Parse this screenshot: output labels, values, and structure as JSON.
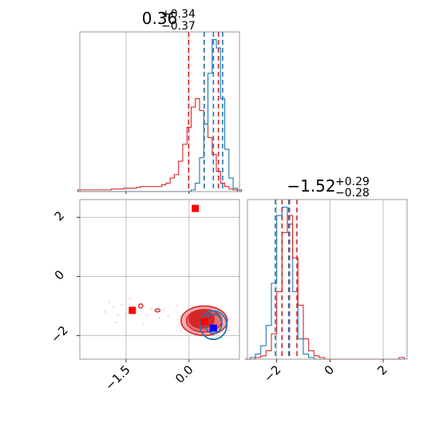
{
  "chart_data": {
    "type": "corner",
    "colors": {
      "red": "#d62728",
      "blue": "#1f77b4",
      "red_fill": "#f4a9aa",
      "marker_blue": "#0000ff",
      "marker_red": "#ff0000"
    },
    "panels": [
      {
        "id": "hist_param1",
        "type": "histogram",
        "title": {
          "median": "0.36",
          "plus": "+0.34",
          "minus": "−0.37"
        },
        "xlim": [
          -2.6,
          1.2
        ],
        "grid_x": [
          -1.5,
          0.0
        ],
        "series": [
          {
            "name": "",
            "color": "#d62728",
            "x": [
              -2.6,
              -2.5,
              -2.4,
              -2.3,
              -2.2,
              -2.1,
              -2.0,
              -1.9,
              -1.8,
              -1.7,
              -1.6,
              -1.5,
              -1.4,
              -1.3,
              -1.2,
              -1.1,
              -1.0,
              -0.9,
              -0.8,
              -0.7,
              -0.6,
              -0.5,
              -0.4,
              -0.3,
              -0.2,
              -0.1,
              0.0,
              0.1,
              0.2,
              0.3,
              0.4,
              0.5,
              0.6,
              0.7,
              0.8,
              0.9,
              1.0,
              1.1,
              1.2
            ],
            "values": [
              0.01,
              0.01,
              0.01,
              0.01,
              0.01,
              0.01,
              0.01,
              0.01,
              0.015,
              0.015,
              0.015,
              0.02,
              0.02,
              0.02,
              0.025,
              0.03,
              0.03,
              0.03,
              0.03,
              0.03,
              0.04,
              0.05,
              0.08,
              0.1,
              0.18,
              0.28,
              0.38,
              0.5,
              0.55,
              0.48,
              0.4,
              0.32,
              0.22,
              0.12,
              0.05,
              0.03,
              0.015,
              0.01,
              0.01
            ],
            "quantile_lines": [
              -0.01,
              0.36,
              0.7
            ],
            "median_line": 0.36
          },
          {
            "name": "",
            "color": "#1f77b4",
            "x": [
              -2.6,
              -2.5,
              -2.4,
              -2.3,
              -2.2,
              -2.1,
              -2.0,
              -1.9,
              -1.8,
              -1.7,
              -1.6,
              -1.5,
              -1.4,
              -1.3,
              -1.2,
              -1.1,
              -1.0,
              -0.9,
              -0.8,
              -0.7,
              -0.6,
              -0.5,
              -0.4,
              -0.3,
              -0.2,
              -0.1,
              0.0,
              0.1,
              0.2,
              0.3,
              0.4,
              0.5,
              0.6,
              0.7,
              0.8,
              0.9,
              1.0,
              1.1,
              1.2
            ],
            "values": [
              0,
              0,
              0,
              0,
              0,
              0,
              0,
              0,
              0,
              0,
              0,
              0,
              0,
              0,
              0,
              0,
              0,
              0,
              0,
              0,
              0,
              0,
              0,
              0,
              0,
              0,
              0,
              0.01,
              0.05,
              0.2,
              0.4,
              0.7,
              0.9,
              0.85,
              0.55,
              0.25,
              0.08,
              0.02,
              0.0
            ],
            "quantile_lines": [
              0.36,
              0.58,
              0.8
            ],
            "median_line": 0.58
          }
        ]
      },
      {
        "id": "hist_param2",
        "type": "histogram",
        "title": {
          "median": "−1.52",
          "plus": "+0.29",
          "minus": "−0.28"
        },
        "xlim": [
          -3.1,
          2.9
        ],
        "xticks": [
          -2,
          0,
          2
        ],
        "xtick_labels": [
          "−2",
          "0",
          "2"
        ],
        "series": [
          {
            "name": "",
            "color": "#1f77b4",
            "x": [
              -3.1,
              -2.9,
              -2.7,
              -2.5,
              -2.3,
              -2.1,
              -1.9,
              -1.7,
              -1.5,
              -1.3,
              -1.1,
              -0.9,
              -0.7,
              -0.5,
              -0.3,
              -0.1,
              0.1,
              0.3,
              0.5,
              0.7,
              0.9,
              1.1,
              1.3,
              1.5,
              1.7,
              1.9,
              2.1,
              2.3,
              2.5,
              2.7
            ],
            "values": [
              0,
              0.01,
              0.03,
              0.08,
              0.2,
              0.45,
              0.85,
              0.9,
              0.8,
              0.4,
              0.12,
              0.03,
              0.01,
              0,
              0,
              0,
              0,
              0,
              0,
              0,
              0,
              0,
              0,
              0,
              0,
              0,
              0,
              0,
              0,
              0
            ],
            "quantile_lines": [
              -2.05,
              -1.8,
              -1.55
            ],
            "median_line": -1.8
          },
          {
            "name": "",
            "color": "#d62728",
            "x": [
              -3.1,
              -2.9,
              -2.7,
              -2.5,
              -2.3,
              -2.1,
              -1.9,
              -1.7,
              -1.5,
              -1.3,
              -1.1,
              -0.9,
              -0.7,
              -0.5,
              -0.3,
              -0.1,
              0.1,
              0.3,
              0.5,
              0.7,
              0.9,
              1.1,
              1.3,
              1.5,
              1.7,
              1.9,
              2.1,
              2.3,
              2.5,
              2.7
            ],
            "values": [
              0,
              0,
              0.01,
              0.02,
              0.05,
              0.15,
              0.4,
              0.75,
              0.85,
              0.6,
              0.32,
              0.12,
              0.05,
              0.02,
              0.01,
              0,
              0,
              0,
              0,
              0,
              0,
              0,
              0,
              0,
              0,
              0,
              0,
              0,
              0,
              0.01
            ],
            "quantile_lines": [
              -1.8,
              -1.52,
              -1.24
            ],
            "median_line": -1.52
          }
        ]
      },
      {
        "id": "joint_param1_param2",
        "type": "contour",
        "xlim": [
          -2.6,
          1.2
        ],
        "ylim": [
          -2.8,
          2.6
        ],
        "xticks": [
          -1.5,
          0.0
        ],
        "xtick_labels": [
          "−1.5",
          "0.0"
        ],
        "yticks": [
          -2,
          0,
          2
        ],
        "ytick_labels": [
          "−2",
          "0",
          "2"
        ],
        "red_contours": [
          {
            "cx": 0.36,
            "cy": -1.5,
            "rx": 0.55,
            "ry": 0.5
          },
          {
            "cx": 0.36,
            "cy": -1.5,
            "rx": 0.42,
            "ry": 0.38
          },
          {
            "cx": 0.3,
            "cy": -1.45,
            "rx": 0.3,
            "ry": 0.3
          }
        ],
        "blue_contours": [
          {
            "cx": 0.58,
            "cy": -1.65,
            "rx": 0.32,
            "ry": 0.48
          },
          {
            "cx": 0.58,
            "cy": -1.6,
            "rx": 0.2,
            "ry": 0.33
          }
        ],
        "red_markers": [
          {
            "x": 0.15,
            "y": 2.3
          },
          {
            "x": -1.35,
            "y": -1.15
          },
          {
            "x": 0.36,
            "y": -1.52
          }
        ],
        "blue_markers": [
          {
            "x": 0.58,
            "y": -1.75
          }
        ],
        "scatter_red": [
          {
            "x": -1.9,
            "y": -0.85
          },
          {
            "x": -1.8,
            "y": -1.05
          },
          {
            "x": -1.7,
            "y": -1.3
          },
          {
            "x": -1.6,
            "y": -0.95
          },
          {
            "x": -1.5,
            "y": -1.25
          },
          {
            "x": -1.2,
            "y": -1.0
          },
          {
            "x": -1.0,
            "y": -1.3
          },
          {
            "x": -0.9,
            "y": -1.1
          },
          {
            "x": -0.7,
            "y": -1.4
          },
          {
            "x": -0.6,
            "y": -1.1
          },
          {
            "x": -1.75,
            "y": -1.55
          },
          {
            "x": -2.0,
            "y": -1.2
          },
          {
            "x": -1.4,
            "y": -0.75
          },
          {
            "x": -0.5,
            "y": -1.35
          },
          {
            "x": -0.3,
            "y": -1.0
          },
          {
            "x": -1.1,
            "y": -1.6
          },
          {
            "x": 0.8,
            "y": -1.2
          },
          {
            "x": 0.95,
            "y": -1.8
          },
          {
            "x": 0.9,
            "y": -1.4
          },
          {
            "x": -0.2,
            "y": -1.85
          }
        ],
        "small_red_islands": [
          {
            "cx": -1.15,
            "cy": -1.0,
            "rx": 0.05,
            "ry": 0.07
          },
          {
            "cx": -0.75,
            "cy": -1.15,
            "rx": 0.06,
            "ry": 0.05
          }
        ]
      }
    ]
  }
}
